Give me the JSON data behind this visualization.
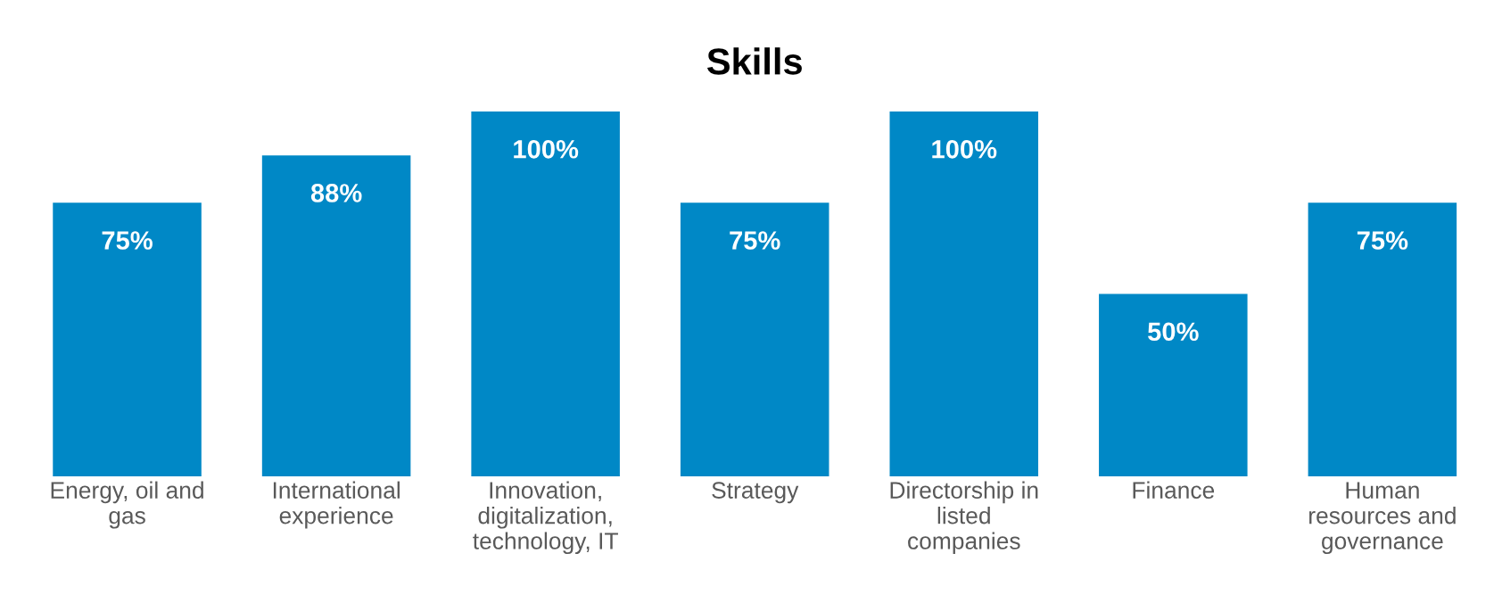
{
  "chart_data": {
    "type": "bar",
    "title": "Skills",
    "categories": [
      "Energy, oil and\ngas",
      "International\nexperience",
      "Innovation,\ndigitalization,\ntechnology, IT",
      "Strategy",
      "Directorship in\nlisted\ncompanies",
      "Finance",
      "Human\nresources and\ngovernance"
    ],
    "values": [
      75,
      88,
      100,
      75,
      100,
      50,
      75
    ],
    "value_labels": [
      "75%",
      "88%",
      "100%",
      "75%",
      "100%",
      "50%",
      "75%"
    ],
    "color": "#0088c6",
    "grid": false,
    "legend": false
  }
}
